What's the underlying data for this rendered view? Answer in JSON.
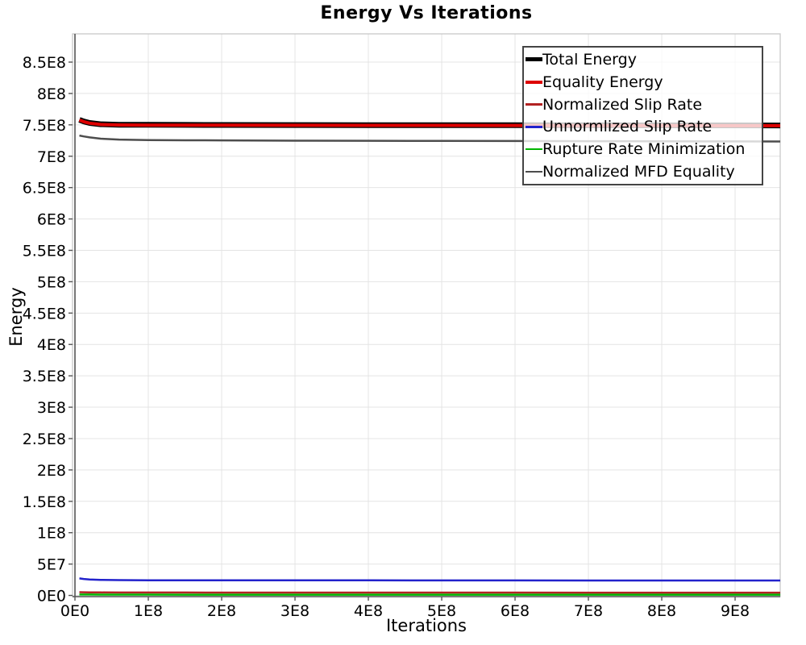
{
  "title": "Energy Vs Iterations",
  "chart_data": {
    "type": "line",
    "title": "Energy Vs Iterations",
    "xlabel": "Iterations",
    "ylabel": "Energy",
    "xlim": [
      -3300000,
      961500000
    ],
    "ylim": [
      -1900000,
      895000000
    ],
    "grid": true,
    "legend_position": "inside-top-right",
    "x_ticks": {
      "values": [
        0,
        100000000,
        200000000,
        300000000,
        400000000,
        500000000,
        600000000,
        700000000,
        800000000,
        900000000
      ],
      "labels": [
        "0E0",
        "1E8",
        "2E8",
        "3E8",
        "4E8",
        "5E8",
        "6E8",
        "7E8",
        "8E8",
        "9E8"
      ]
    },
    "y_ticks": {
      "values": [
        0,
        50000000,
        100000000,
        150000000,
        200000000,
        250000000,
        300000000,
        350000000,
        400000000,
        450000000,
        500000000,
        550000000,
        600000000,
        650000000,
        700000000,
        750000000,
        800000000,
        850000000
      ],
      "labels": [
        "0E0",
        "5E7",
        "1E8",
        "1.5E8",
        "2E8",
        "2.5E8",
        "3E8",
        "3.5E8",
        "4E8",
        "4.5E8",
        "5E8",
        "5.5E8",
        "6E8",
        "6.5E8",
        "7E8",
        "7.5E8",
        "8E8",
        "8.5E8"
      ]
    },
    "x": [
      6000000,
      12000000,
      20000000,
      35000000,
      60000000,
      100000000,
      150000000,
      200000000,
      300000000,
      400000000,
      500000000,
      600000000,
      700000000,
      800000000,
      900000000,
      961500000
    ],
    "series": [
      {
        "name": "Total Energy",
        "color": "#000000",
        "width": 7,
        "values": [
          758000000,
          755500000,
          753000000,
          751000000,
          750200000,
          750000000,
          749900000,
          749800000,
          749700000,
          749600000,
          749500000,
          749400000,
          749300000,
          749200000,
          749100000,
          749000000
        ]
      },
      {
        "name": "Equality Energy",
        "color": "#dd0000",
        "width": 4,
        "values": [
          757600000,
          755100000,
          752600000,
          750600000,
          749800000,
          749600000,
          749500000,
          749400000,
          749300000,
          749200000,
          749100000,
          749000000,
          748900000,
          748800000,
          748700000,
          748600000
        ]
      },
      {
        "name": "Normalized Slip Rate",
        "color": "#b22222",
        "width": 2.5,
        "values": [
          5200000,
          5000000,
          4900000,
          4800000,
          4700000,
          4600000,
          4600000,
          4500000,
          4500000,
          4500000,
          4500000,
          4500000,
          4400000,
          4400000,
          4400000,
          4400000
        ]
      },
      {
        "name": "Unnormlized Slip Rate",
        "color": "#2222cc",
        "width": 2.5,
        "values": [
          27200000,
          26200000,
          25500000,
          24800000,
          24400000,
          24200000,
          24100000,
          24100000,
          24000000,
          24000000,
          23900000,
          23900000,
          23800000,
          23800000,
          23800000,
          23800000
        ]
      },
      {
        "name": "Rupture Rate Minimization",
        "color": "#00b400",
        "width": 2.5,
        "values": [
          1500000,
          1400000,
          1400000,
          1300000,
          1300000,
          1300000,
          1200000,
          1200000,
          1200000,
          1200000,
          1200000,
          1200000,
          1200000,
          1200000,
          1200000,
          1200000
        ]
      },
      {
        "name": "Normalized MFD Equality",
        "color": "#4d4d4d",
        "width": 2.5,
        "values": [
          733000000,
          731500000,
          730000000,
          728000000,
          726500000,
          725800000,
          725400000,
          725200000,
          724800000,
          724600000,
          724400000,
          724200000,
          724000000,
          723800000,
          723600000,
          723500000
        ]
      }
    ],
    "colors": {
      "grid": "#e4e4e4",
      "axis": "#555555",
      "plot_border": "#c8c8c8",
      "tick_text": "#000000",
      "legend_border": "#444444"
    }
  }
}
